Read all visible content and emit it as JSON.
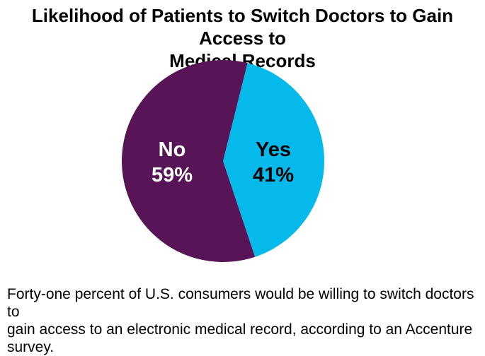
{
  "page": {
    "background_color": "#ffffff",
    "text_color": "#000000"
  },
  "title": {
    "full": "Likelihood of Patients to Switch Doctors to Gain Access to Medical Records",
    "lines": [
      "Likelihood of Patients to Switch Doctors to Gain Access to",
      "Medical Records"
    ]
  },
  "chart_data": {
    "type": "pie",
    "title": "Likelihood of Patients to Switch Doctors to Gain Access to Medical Records",
    "unit": "percent",
    "legend": "none",
    "labels_inside": true,
    "start_angle_deg": 14,
    "slices": [
      {
        "label": "Yes",
        "value": 41,
        "display_pct": "41%",
        "color": "#05b9ea",
        "label_color": "#000000"
      },
      {
        "label": "No",
        "value": 59,
        "display_pct": "59%",
        "color": "#571456",
        "label_color": "#ffffff"
      }
    ]
  },
  "caption": {
    "full": "Forty-one percent of U.S. consumers would be willing to switch doctors to gain access to an electronic medical record, according to an Accenture survey.",
    "lines": [
      "Forty-one percent of U.S. consumers would be willing to switch doctors to",
      "gain access to an electronic medical record, according to an Accenture",
      "survey."
    ]
  }
}
